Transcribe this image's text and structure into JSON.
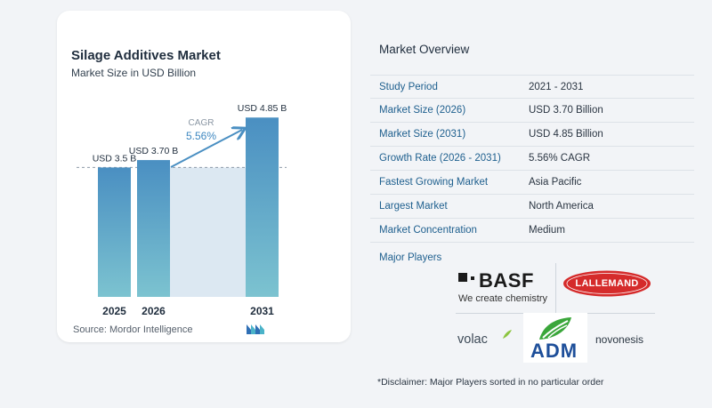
{
  "chart_data": {
    "type": "bar",
    "title": "Silage Additives Market",
    "subtitle": "Market Size in USD Billion",
    "categories": [
      "2025",
      "2026",
      "2031"
    ],
    "values": [
      3.5,
      3.7,
      4.85
    ],
    "data_labels": [
      "USD 3.5 B",
      "USD 3.70 B",
      "USD 4.85 B"
    ],
    "ylim": [
      0,
      5.0
    ],
    "grid": false,
    "annotation": {
      "label": "CAGR",
      "value": "5.56%"
    },
    "colors": {
      "bar_top": "#4a8fc2",
      "bar_bottom": "#7cc3d0",
      "highlight": "#dce8f2",
      "arrow": "#4a8fc2"
    }
  },
  "source": "Source: Mordor Intelligence",
  "overview": {
    "title": "Market Overview",
    "rows": [
      {
        "label": "Study Period",
        "value": "2021 - 2031"
      },
      {
        "label": "Market Size (2026)",
        "value": "USD 3.70 Billion"
      },
      {
        "label": "Market Size (2031)",
        "value": "USD 4.85 Billion"
      },
      {
        "label": "Growth Rate (2026 - 2031)",
        "value": "5.56% CAGR"
      },
      {
        "label": "Fastest Growing Market",
        "value": "Asia Pacific"
      },
      {
        "label": "Largest Market",
        "value": "North America"
      },
      {
        "label": "Market Concentration",
        "value": "Medium"
      }
    ],
    "major_players_label": "Major Players"
  },
  "players": {
    "basf": {
      "name": "BASF",
      "tagline": "We create chemistry"
    },
    "lallemand": {
      "name": "LALLEMAND"
    },
    "volac": {
      "name": "volac"
    },
    "adm": {
      "name": "ADM"
    },
    "novonesis": {
      "name": "novonesis"
    }
  },
  "disclaimer": "*Disclaimer: Major Players sorted in no particular order"
}
